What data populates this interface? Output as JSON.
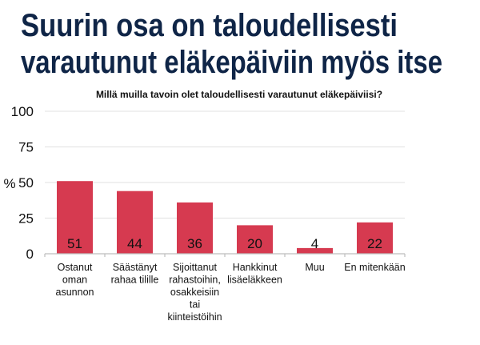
{
  "title_lines": [
    "Suurin osa on taloudellisesti",
    "varautunut eläkepäiviin myös itse"
  ],
  "chart_data": {
    "type": "bar",
    "title": "Millä muilla tavoin olet taloudellisesti varautunut eläkepäiviisi?",
    "ylabel": "%",
    "xlabel": "",
    "ylim": [
      0,
      100
    ],
    "yticks": [
      0,
      25,
      50,
      75,
      100
    ],
    "grid": true,
    "categories": [
      [
        "Ostanut",
        "oman",
        "asunnon"
      ],
      [
        "Säästänyt",
        "rahaa tilille"
      ],
      [
        "Sijoittanut",
        "rahastoihin,",
        "osakkeisiin",
        "tai",
        "kiinteistöihin"
      ],
      [
        "Hankkinut",
        "lisäeläkkeen"
      ],
      [
        "Muu"
      ],
      [
        "En mitenkään"
      ]
    ],
    "values": [
      51,
      44,
      36,
      20,
      4,
      22
    ],
    "bar_color": "#d63a50"
  }
}
